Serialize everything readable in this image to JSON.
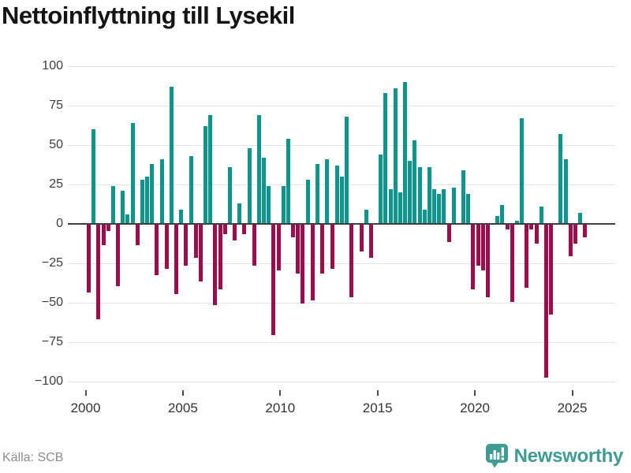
{
  "chart_data": {
    "type": "bar",
    "title": "Nettoinflyttning till Lysekil",
    "frequency": "quarterly",
    "start_year": 2000,
    "start_quarter": 1,
    "values": [
      -43,
      60,
      -60,
      -13,
      -4,
      24,
      -39,
      21,
      6,
      64,
      -13,
      28,
      30,
      38,
      -32,
      41,
      -28,
      87,
      -44,
      9,
      -26,
      43,
      -21,
      -36,
      62,
      69,
      -51,
      -41,
      -6,
      36,
      -10,
      13,
      -6,
      48,
      -26,
      69,
      42,
      24,
      -70,
      -29,
      24,
      54,
      -8,
      -31,
      -50,
      28,
      -48,
      38,
      -31,
      41,
      -28,
      37,
      30,
      68,
      -46,
      0,
      -17,
      9,
      -21,
      0,
      44,
      83,
      22,
      86,
      20,
      90,
      40,
      53,
      36,
      9,
      36,
      22,
      19,
      22,
      -11,
      23,
      0,
      34,
      19,
      -41,
      -26,
      -29,
      -46,
      0,
      5,
      12,
      -3,
      -49,
      2,
      67,
      -40,
      -3,
      -12,
      11,
      -97,
      -57,
      0,
      57,
      41,
      -20,
      -12,
      7,
      -8
    ],
    "y_tick_labels": [
      "100",
      "75",
      "50",
      "25",
      "0",
      "−25",
      "−50",
      "−75",
      "−100"
    ],
    "y_tick_values": [
      100,
      75,
      50,
      25,
      0,
      -25,
      -50,
      -75,
      -100
    ],
    "ylim": [
      -100,
      100
    ],
    "x_tick_labels": [
      "2000",
      "2005",
      "2010",
      "2015",
      "2020",
      "2025"
    ],
    "grid": "horizontal",
    "legend": "none",
    "colors": {
      "positive": "#0b968e",
      "negative": "#9e0c4e",
      "gridline": "#e4e4e4",
      "zero_line": "#3f3f3f"
    }
  },
  "footer": {
    "source": "Källa: SCB",
    "brand": "Newsworthy",
    "brand_color": "#3d9c94"
  }
}
